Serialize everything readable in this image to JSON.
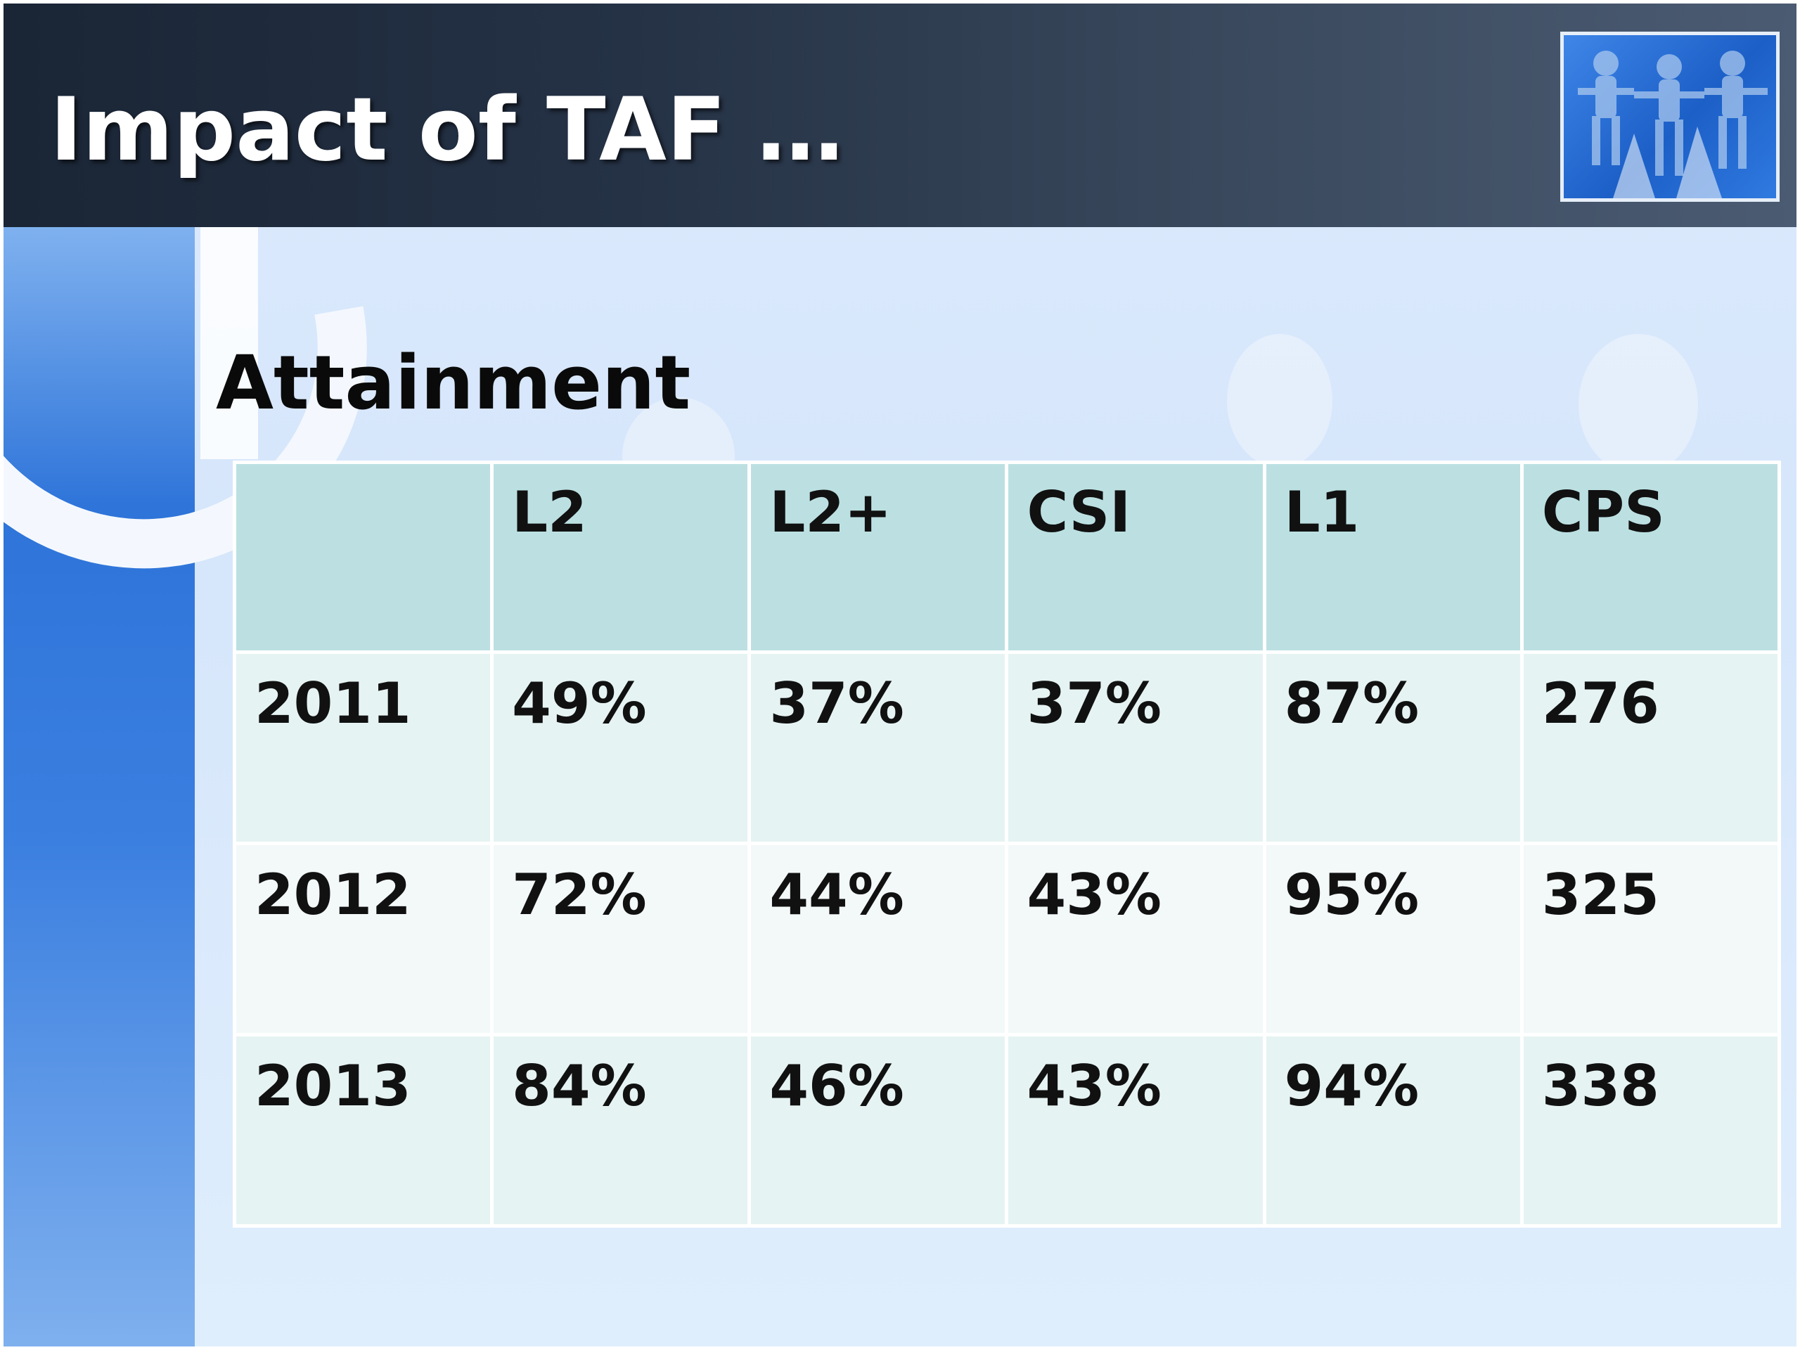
{
  "slide": {
    "title": "Impact of TAF …",
    "subtitle": "Attainment"
  },
  "table": {
    "headers": [
      "",
      "L2",
      "L2+",
      "CSI",
      "L1",
      "CPS"
    ],
    "rows": [
      [
        "2011",
        "49%",
        "37%",
        "37%",
        "87%",
        "276"
      ],
      [
        "2012",
        "72%",
        "44%",
        "43%",
        "95%",
        "325"
      ],
      [
        "2013",
        "84%",
        "46%",
        "43%",
        "94%",
        "338"
      ]
    ]
  },
  "colors": {
    "header_fill": "#bce0e2",
    "row_fill_odd": "#e6f3f3",
    "row_fill_even": "#f3f8f9",
    "title_bar": "#253246"
  },
  "icons": {
    "thumbnail": "paper-people-chain-icon"
  }
}
